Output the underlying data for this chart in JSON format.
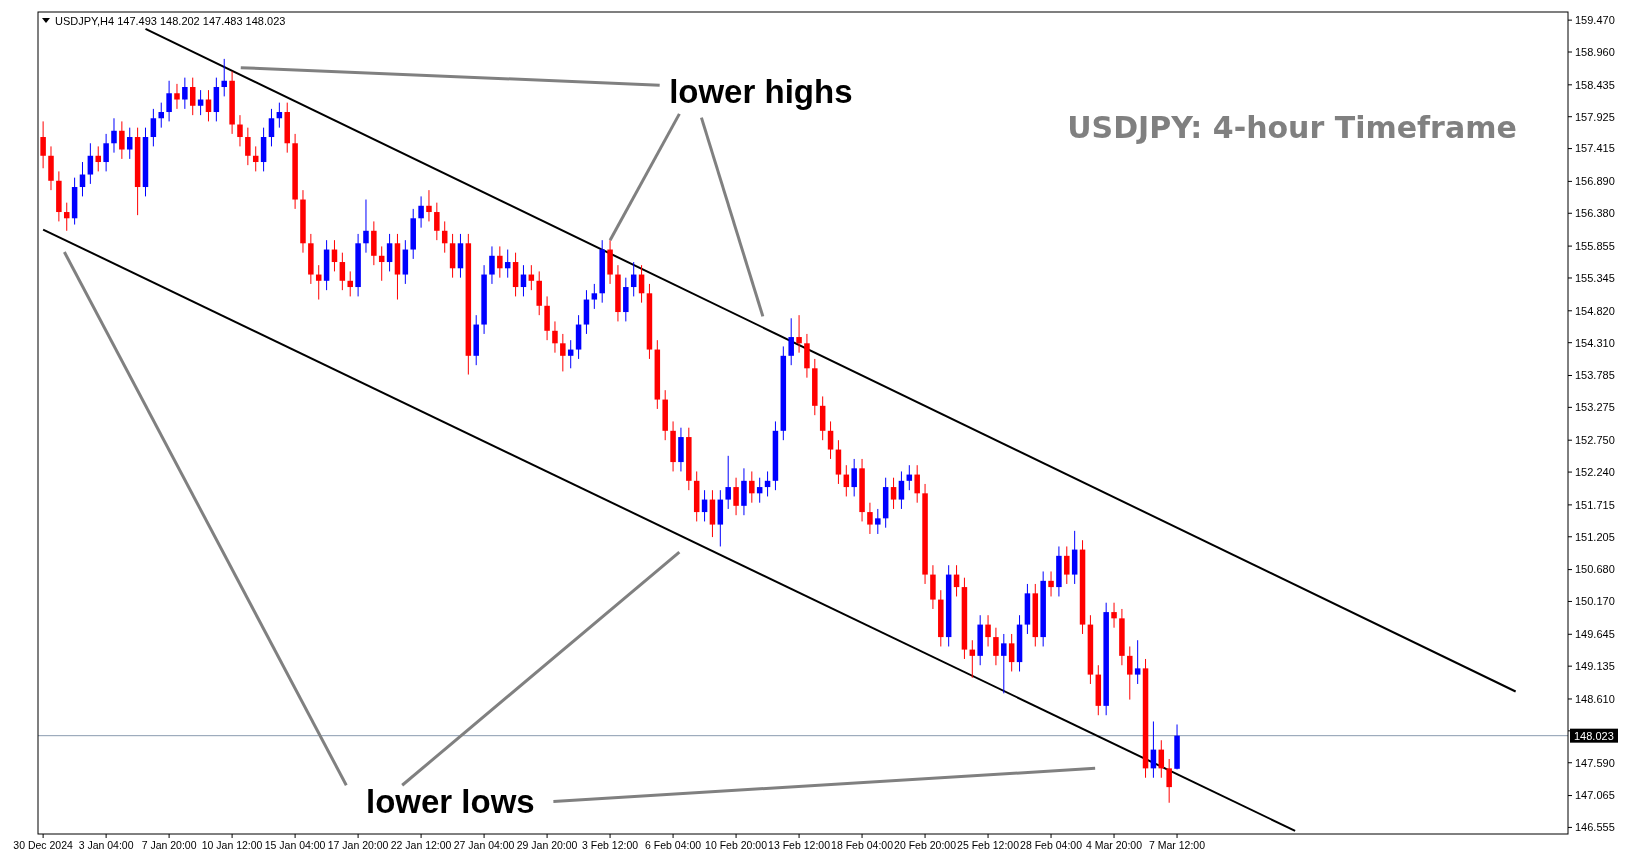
{
  "chart_data": {
    "type": "candlestick",
    "title": "USDJPY: 4-hour Timeframe",
    "annotations": [
      "USDJPY,H4  147.493 148.202 147.483 148.023",
      {
        "text": "lower highs",
        "x": "3 Feb 12:00",
        "y": 155.95
      },
      "lower lows"
    ],
    "categories": [
      "30 Dec 2024",
      null,
      null,
      null,
      null,
      null,
      null,
      null,
      "3 Jan 04:00",
      null,
      null,
      null,
      null,
      null,
      null,
      null,
      "7 Jan 20:00",
      null,
      null,
      null,
      null,
      null,
      null,
      null,
      "10 Jan 12:00",
      null,
      null,
      null,
      null,
      null,
      null,
      null,
      "15 Jan 04:00",
      null,
      null,
      null,
      null,
      null,
      null,
      null,
      "17 Jan 20:00",
      null,
      null,
      null,
      null,
      null,
      null,
      null,
      "22 Jan 12:00",
      null,
      null,
      null,
      null,
      null,
      null,
      null,
      "27 Jan 04:00",
      null,
      null,
      null,
      null,
      null,
      null,
      null,
      "29 Jan 20:00",
      null,
      null,
      null,
      null,
      null,
      null,
      null,
      "3 Feb 12:00",
      null,
      null,
      null,
      null,
      null,
      null,
      null,
      "6 Feb 04:00",
      null,
      null,
      null,
      null,
      null,
      null,
      null,
      "10 Feb 20:00",
      null,
      null,
      null,
      null,
      null,
      null,
      null,
      "13 Feb 12:00",
      null,
      null,
      null,
      null,
      null,
      null,
      null,
      "18 Feb 04:00",
      null,
      null,
      null,
      null,
      null,
      null,
      null,
      "20 Feb 20:00",
      null,
      null,
      null,
      null,
      null,
      null,
      null,
      "25 Feb 12:00",
      null,
      null,
      null,
      null,
      null,
      null,
      null,
      "28 Feb 04:00",
      null,
      null,
      null,
      null,
      null,
      null,
      null,
      "4 Mar 20:00",
      null,
      null,
      null,
      null,
      null,
      null,
      null,
      "7 Mar 12:00",
      null,
      null,
      null,
      null,
      null,
      null,
      null,
      null,
      null,
      null,
      null,
      null,
      null,
      null,
      null,
      null,
      null,
      null,
      null,
      null,
      null,
      null,
      null,
      null,
      null,
      null,
      null,
      null,
      null,
      null,
      null,
      null,
      null,
      null,
      null,
      null,
      null,
      null,
      null,
      null,
      null,
      null,
      null,
      null,
      null,
      null,
      null,
      null,
      null
    ],
    "ohlc": [
      [
        157.6,
        157.85,
        157.1,
        157.3
      ],
      [
        157.3,
        157.45,
        156.75,
        156.9
      ],
      [
        156.9,
        157.05,
        156.25,
        156.4
      ],
      [
        156.4,
        156.55,
        156.1,
        156.3
      ],
      [
        156.3,
        156.95,
        156.2,
        156.8
      ],
      [
        156.8,
        157.2,
        156.65,
        157.0
      ],
      [
        157.0,
        157.5,
        156.85,
        157.3
      ],
      [
        157.3,
        157.45,
        157.05,
        157.2
      ],
      [
        157.2,
        157.65,
        157.05,
        157.5
      ],
      [
        157.5,
        157.9,
        157.35,
        157.7
      ],
      [
        157.7,
        157.85,
        157.25,
        157.4
      ],
      [
        157.4,
        157.75,
        157.25,
        157.6
      ],
      [
        157.6,
        157.75,
        156.35,
        156.8
      ],
      [
        156.8,
        157.75,
        156.65,
        157.6
      ],
      [
        157.6,
        158.05,
        157.45,
        157.9
      ],
      [
        157.9,
        158.15,
        157.75,
        158.0
      ],
      [
        158.0,
        158.5,
        157.85,
        158.3
      ],
      [
        158.3,
        158.45,
        158.05,
        158.2
      ],
      [
        158.2,
        158.55,
        158.05,
        158.4
      ],
      [
        158.4,
        158.55,
        157.95,
        158.1
      ],
      [
        158.1,
        158.35,
        157.95,
        158.2
      ],
      [
        158.2,
        158.35,
        157.85,
        158.0
      ],
      [
        158.0,
        158.55,
        157.85,
        158.4
      ],
      [
        158.4,
        158.85,
        158.25,
        158.5
      ],
      [
        158.5,
        158.65,
        157.65,
        157.8
      ],
      [
        157.8,
        157.95,
        157.45,
        157.6
      ],
      [
        157.6,
        157.75,
        157.15,
        157.3
      ],
      [
        157.3,
        157.45,
        157.05,
        157.2
      ],
      [
        157.2,
        157.75,
        157.05,
        157.6
      ],
      [
        157.6,
        158.05,
        157.45,
        157.9
      ],
      [
        157.9,
        158.15,
        157.75,
        158.0
      ],
      [
        158.0,
        158.15,
        157.35,
        157.5
      ],
      [
        157.5,
        157.65,
        156.45,
        156.6
      ],
      [
        156.6,
        156.75,
        155.75,
        155.9
      ],
      [
        155.9,
        156.05,
        155.25,
        155.4
      ],
      [
        155.4,
        155.55,
        155.0,
        155.3
      ],
      [
        155.3,
        155.95,
        155.15,
        155.8
      ],
      [
        155.8,
        155.95,
        155.45,
        155.6
      ],
      [
        155.6,
        155.75,
        155.15,
        155.3
      ],
      [
        155.3,
        155.45,
        155.05,
        155.2
      ],
      [
        155.2,
        156.05,
        155.05,
        155.9
      ],
      [
        155.9,
        156.6,
        155.75,
        156.1
      ],
      [
        156.1,
        156.25,
        155.55,
        155.7
      ],
      [
        155.7,
        155.85,
        155.3,
        155.6
      ],
      [
        155.6,
        156.05,
        155.45,
        155.9
      ],
      [
        155.9,
        156.05,
        155.0,
        155.4
      ],
      [
        155.4,
        155.95,
        155.25,
        155.8
      ],
      [
        155.8,
        156.45,
        155.65,
        156.3
      ],
      [
        156.3,
        156.65,
        156.15,
        156.5
      ],
      [
        156.5,
        156.75,
        156.25,
        156.4
      ],
      [
        156.4,
        156.55,
        155.95,
        156.1
      ],
      [
        156.1,
        156.25,
        155.75,
        155.9
      ],
      [
        155.9,
        156.05,
        155.35,
        155.5
      ],
      [
        155.5,
        156.05,
        155.35,
        155.9
      ],
      [
        155.9,
        156.05,
        153.8,
        154.1
      ],
      [
        154.1,
        154.75,
        153.95,
        154.6
      ],
      [
        154.6,
        155.55,
        154.45,
        155.4
      ],
      [
        155.4,
        155.85,
        155.25,
        155.7
      ],
      [
        155.7,
        155.85,
        155.35,
        155.5
      ],
      [
        155.5,
        155.8,
        155.35,
        155.6
      ],
      [
        155.6,
        155.75,
        155.05,
        155.2
      ],
      [
        155.2,
        155.55,
        155.05,
        155.4
      ],
      [
        155.4,
        155.55,
        155.15,
        155.3
      ],
      [
        155.3,
        155.45,
        154.75,
        154.9
      ],
      [
        154.9,
        155.05,
        154.35,
        154.5
      ],
      [
        154.5,
        154.65,
        154.15,
        154.3
      ],
      [
        154.3,
        154.45,
        153.85,
        154.1
      ],
      [
        154.1,
        154.35,
        153.9,
        154.2
      ],
      [
        154.2,
        154.75,
        154.05,
        154.6
      ],
      [
        154.6,
        155.15,
        154.45,
        155.0
      ],
      [
        155.0,
        155.25,
        154.85,
        155.1
      ],
      [
        155.1,
        155.95,
        154.95,
        155.8
      ],
      [
        155.8,
        155.95,
        155.25,
        155.4
      ],
      [
        155.4,
        155.55,
        154.65,
        154.8
      ],
      [
        154.8,
        155.35,
        154.65,
        155.2
      ],
      [
        155.2,
        155.6,
        155.05,
        155.4
      ],
      [
        155.4,
        155.55,
        154.95,
        155.1
      ],
      [
        155.1,
        155.25,
        154.05,
        154.2
      ],
      [
        154.2,
        154.35,
        153.25,
        153.4
      ],
      [
        153.4,
        153.55,
        152.75,
        152.9
      ],
      [
        152.9,
        153.05,
        152.25,
        152.4
      ],
      [
        152.4,
        152.95,
        152.25,
        152.8
      ],
      [
        152.8,
        152.95,
        151.95,
        152.1
      ],
      [
        152.1,
        152.25,
        151.45,
        151.6
      ],
      [
        151.6,
        151.95,
        151.45,
        151.8
      ],
      [
        151.8,
        151.95,
        151.2,
        151.4
      ],
      [
        151.4,
        151.95,
        151.05,
        151.8
      ],
      [
        151.8,
        152.5,
        151.65,
        152.0
      ],
      [
        152.0,
        152.15,
        151.55,
        151.7
      ],
      [
        151.7,
        152.3,
        151.55,
        152.1
      ],
      [
        152.1,
        152.25,
        151.75,
        151.9
      ],
      [
        151.9,
        152.15,
        151.75,
        152.0
      ],
      [
        152.0,
        152.25,
        151.85,
        152.1
      ],
      [
        152.1,
        153.05,
        151.95,
        152.9
      ],
      [
        152.9,
        154.25,
        152.75,
        154.1
      ],
      [
        154.1,
        154.7,
        153.95,
        154.4
      ],
      [
        154.4,
        154.75,
        154.15,
        154.3
      ],
      [
        154.3,
        154.45,
        153.75,
        153.9
      ],
      [
        153.9,
        154.05,
        153.15,
        153.3
      ],
      [
        153.3,
        153.45,
        152.75,
        152.9
      ],
      [
        152.9,
        153.05,
        152.45,
        152.6
      ],
      [
        152.6,
        152.75,
        152.05,
        152.2
      ],
      [
        152.2,
        152.35,
        151.85,
        152.0
      ],
      [
        152.0,
        152.45,
        151.85,
        152.3
      ],
      [
        152.3,
        152.45,
        151.45,
        151.6
      ],
      [
        151.6,
        151.75,
        151.25,
        151.4
      ],
      [
        151.4,
        151.65,
        151.25,
        151.5
      ],
      [
        151.5,
        152.15,
        151.35,
        152.0
      ],
      [
        152.0,
        152.15,
        151.65,
        151.8
      ],
      [
        151.8,
        152.25,
        151.65,
        152.1
      ],
      [
        152.1,
        152.35,
        151.95,
        152.2
      ],
      [
        152.2,
        152.35,
        151.75,
        151.9
      ],
      [
        151.9,
        152.05,
        150.45,
        150.6
      ],
      [
        150.6,
        150.75,
        150.05,
        150.2
      ],
      [
        150.2,
        150.35,
        149.45,
        149.6
      ],
      [
        149.6,
        150.75,
        149.45,
        150.6
      ],
      [
        150.6,
        150.75,
        150.25,
        150.4
      ],
      [
        150.4,
        150.55,
        149.25,
        149.4
      ],
      [
        149.4,
        149.55,
        148.95,
        149.3
      ],
      [
        149.3,
        149.95,
        149.15,
        149.8
      ],
      [
        149.8,
        149.95,
        149.45,
        149.6
      ],
      [
        149.6,
        149.75,
        149.15,
        149.3
      ],
      [
        149.3,
        149.65,
        148.7,
        149.5
      ],
      [
        149.5,
        149.65,
        149.05,
        149.2
      ],
      [
        149.2,
        149.95,
        149.05,
        149.8
      ],
      [
        149.8,
        150.45,
        149.65,
        150.3
      ],
      [
        150.3,
        150.45,
        149.45,
        149.6
      ],
      [
        149.6,
        150.65,
        149.45,
        150.5
      ],
      [
        150.5,
        150.65,
        150.25,
        150.4
      ],
      [
        150.4,
        151.05,
        150.25,
        150.9
      ],
      [
        150.9,
        151.05,
        150.45,
        150.6
      ],
      [
        150.6,
        151.3,
        150.45,
        151.0
      ],
      [
        151.0,
        151.15,
        149.65,
        149.8
      ],
      [
        149.8,
        149.95,
        148.85,
        149.0
      ],
      [
        149.0,
        149.15,
        148.35,
        148.5
      ],
      [
        148.5,
        150.15,
        148.35,
        150.0
      ],
      [
        150.0,
        150.15,
        149.75,
        149.9
      ],
      [
        149.9,
        150.05,
        149.15,
        149.3
      ],
      [
        149.3,
        149.45,
        148.6,
        149.0
      ],
      [
        149.0,
        149.55,
        148.85,
        149.1
      ],
      [
        149.1,
        149.25,
        147.35,
        147.5
      ],
      [
        147.5,
        148.25,
        147.35,
        147.8
      ],
      [
        147.8,
        147.95,
        147.35,
        147.5
      ],
      [
        147.5,
        147.65,
        146.95,
        147.2
      ],
      [
        147.493,
        148.202,
        147.483,
        148.023
      ],
      null,
      null,
      null,
      null,
      null,
      null,
      null,
      null,
      null,
      null,
      null,
      null,
      null,
      null,
      null,
      null,
      null,
      null,
      null,
      null,
      null,
      null,
      null,
      null,
      null,
      null,
      null,
      null,
      null,
      null,
      null,
      null,
      null,
      null,
      null,
      null,
      null,
      null,
      null,
      null,
      null,
      null,
      null,
      null,
      null,
      null,
      null,
      null,
      null
    ],
    "colors": [
      "#ff0000",
      "#ff0000",
      "#ff0000",
      "#ff0000",
      "#0000ff",
      "#0000ff",
      "#0000ff",
      "#ff0000",
      "#0000ff",
      "#0000ff",
      "#ff0000",
      "#0000ff",
      "#ff0000",
      "#0000ff",
      "#0000ff",
      "#0000ff",
      "#0000ff",
      "#ff0000",
      "#0000ff",
      "#ff0000",
      "#0000ff",
      "#ff0000",
      "#0000ff",
      "#0000ff",
      "#ff0000",
      "#ff0000",
      "#ff0000",
      "#ff0000",
      "#0000ff",
      "#0000ff",
      "#0000ff",
      "#ff0000",
      "#ff0000",
      "#ff0000",
      "#ff0000",
      "#ff0000",
      "#0000ff",
      "#ff0000",
      "#ff0000",
      "#ff0000",
      "#0000ff",
      "#0000ff",
      "#ff0000",
      "#ff0000",
      "#0000ff",
      "#ff0000",
      "#0000ff",
      "#0000ff",
      "#0000ff",
      "#ff0000",
      "#ff0000",
      "#ff0000",
      "#ff0000",
      "#0000ff",
      "#ff0000",
      "#0000ff",
      "#0000ff",
      "#0000ff",
      "#ff0000",
      "#0000ff",
      "#ff0000",
      "#0000ff",
      "#ff0000",
      "#ff0000",
      "#ff0000",
      "#ff0000",
      "#ff0000",
      "#0000ff",
      "#0000ff",
      "#0000ff",
      "#0000ff",
      "#0000ff",
      "#ff0000",
      "#ff0000",
      "#0000ff",
      "#0000ff",
      "#ff0000",
      "#ff0000",
      "#ff0000",
      "#ff0000",
      "#ff0000",
      "#0000ff",
      "#ff0000",
      "#ff0000",
      "#0000ff",
      "#ff0000",
      "#0000ff",
      "#0000ff",
      "#ff0000",
      "#0000ff",
      "#ff0000",
      "#0000ff",
      "#0000ff",
      "#0000ff",
      "#0000ff",
      "#0000ff",
      "#ff0000",
      "#ff0000",
      "#ff0000",
      "#ff0000",
      "#ff0000",
      "#ff0000",
      "#ff0000",
      "#0000ff",
      "#ff0000",
      "#ff0000",
      "#0000ff",
      "#0000ff",
      "#ff0000",
      "#0000ff",
      "#0000ff",
      "#ff0000",
      "#ff0000",
      "#ff0000",
      "#ff0000",
      "#0000ff",
      "#ff0000",
      "#ff0000",
      "#ff0000",
      "#0000ff",
      "#ff0000",
      "#ff0000",
      "#0000ff",
      "#ff0000",
      "#0000ff",
      "#0000ff",
      "#ff0000",
      "#0000ff",
      "#ff0000",
      "#0000ff",
      "#ff0000",
      "#0000ff",
      "#ff0000",
      "#ff0000",
      "#ff0000",
      "#0000ff",
      "#ff0000",
      "#ff0000",
      "#ff0000",
      "#0000ff",
      "#ff0000",
      "#0000ff",
      "#ff0000",
      "#ff0000",
      "#0000ff",
      null,
      null,
      null,
      null,
      null,
      null,
      null,
      null,
      null,
      null,
      null,
      null,
      null,
      null,
      null,
      null,
      null,
      null,
      null,
      null,
      null,
      null,
      null,
      null,
      null,
      null,
      null,
      null,
      null,
      null,
      null,
      null,
      null,
      null,
      null,
      null,
      null,
      null,
      null,
      null,
      null,
      null,
      null,
      null,
      null,
      null,
      null,
      null,
      null
    ],
    "series": [
      {
        "type": "line",
        "color": "#000000",
        "values": [
          null,
          null,
          null,
          null,
          null,
          null,
          null,
          null,
          null,
          null,
          null,
          null,
          null,
          159.33,
          null,
          null,
          null,
          null,
          null,
          null,
          null,
          null,
          null,
          null,
          null,
          null,
          null,
          null,
          null,
          null,
          null,
          null,
          null,
          null,
          null,
          null,
          null,
          null,
          null,
          null,
          null,
          null,
          null,
          null,
          null,
          null,
          null,
          null,
          null,
          null,
          null,
          null,
          null,
          null,
          null,
          null,
          null,
          null,
          null,
          null,
          null,
          null,
          null,
          null,
          null,
          null,
          null,
          null,
          null,
          null,
          null,
          null,
          null,
          null,
          null,
          null,
          null,
          null,
          null,
          null,
          null,
          null,
          null,
          null,
          null,
          null,
          null,
          null,
          null,
          null,
          null,
          null,
          null,
          null,
          null,
          null,
          null,
          null,
          null,
          null,
          null,
          null,
          null,
          null,
          null,
          null,
          null,
          null,
          null,
          null,
          null,
          null,
          null,
          null,
          null,
          null,
          null,
          null,
          null,
          null,
          null,
          null,
          null,
          null,
          null,
          null,
          null,
          null,
          null,
          null,
          null,
          null,
          null,
          null,
          null,
          null,
          null,
          null,
          null,
          null,
          null,
          null,
          null,
          null,
          null,
          null,
          null,
          null,
          null,
          null,
          null,
          null,
          null,
          null,
          null,
          null,
          null,
          null,
          null,
          null,
          null,
          null,
          null,
          null,
          null,
          null,
          null,
          null,
          null,
          null,
          null,
          null,
          null,
          null,
          null,
          null,
          null,
          null,
          null,
          null,
          null,
          null,
          null,
          null,
          null,
          null,
          null,
          148.73,
          null,
          null,
          null,
          null,
          null,
          null
        ]
      },
      {
        "type": "line",
        "color": "#000000",
        "values": [
          156.12,
          null,
          null,
          null,
          null,
          null,
          null,
          null,
          null,
          null,
          null,
          null,
          null,
          null,
          null,
          null,
          null,
          null,
          null,
          null,
          null,
          null,
          null,
          null,
          null,
          null,
          null,
          null,
          null,
          null,
          null,
          null,
          null,
          null,
          null,
          null,
          null,
          null,
          null,
          null,
          null,
          null,
          null,
          null,
          null,
          null,
          null,
          null,
          null,
          null,
          null,
          null,
          null,
          null,
          null,
          null,
          null,
          null,
          null,
          null,
          null,
          null,
          null,
          null,
          null,
          null,
          null,
          null,
          null,
          null,
          null,
          null,
          null,
          null,
          null,
          null,
          null,
          null,
          null,
          null,
          null,
          null,
          null,
          null,
          null,
          null,
          null,
          null,
          null,
          null,
          null,
          null,
          null,
          null,
          null,
          null,
          null,
          null,
          null,
          null,
          null,
          null,
          null,
          null,
          null,
          null,
          null,
          null,
          null,
          null,
          null,
          null,
          null,
          null,
          null,
          null,
          null,
          null,
          null,
          null,
          null,
          null,
          null,
          null,
          null,
          null,
          null,
          null,
          null,
          null,
          null,
          null,
          null,
          null,
          null,
          null,
          null,
          null,
          null,
          null,
          null,
          null,
          null,
          null,
          null,
          null,
          null,
          null,
          null,
          null,
          null,
          null,
          null,
          null,
          null,
          null,
          null,
          null,
          null,
          146.5,
          null,
          null,
          null,
          null,
          null,
          null,
          null,
          null,
          null,
          null,
          null,
          null,
          null,
          null,
          null,
          null,
          null,
          null,
          null,
          null,
          null,
          null,
          null,
          null,
          null,
          null,
          null,
          null,
          null,
          null,
          null,
          null,
          null,
          null
        ]
      }
    ],
    "ylim": [
      146.45,
      159.6
    ],
    "yticks": [
      {
        "value": 159.47,
        "label": "159.470"
      },
      {
        "value": 158.96,
        "label": "158.960"
      },
      {
        "value": 158.435,
        "label": "158.435"
      },
      {
        "value": 157.925,
        "label": "157.925"
      },
      {
        "value": 157.415,
        "label": "157.415"
      },
      {
        "value": 156.89,
        "label": "156.890"
      },
      {
        "value": 156.38,
        "label": "156.380"
      },
      {
        "value": 155.855,
        "label": "155.855"
      },
      {
        "value": 155.345,
        "label": "155.345"
      },
      {
        "value": 154.82,
        "label": "154.820"
      },
      {
        "value": 154.31,
        "label": "154.310"
      },
      {
        "value": 153.785,
        "label": "153.785"
      },
      {
        "value": 153.275,
        "label": "153.275"
      },
      {
        "value": 152.75,
        "label": "152.750"
      },
      {
        "value": 152.24,
        "label": "152.240"
      },
      {
        "value": 151.715,
        "label": "151.715"
      },
      {
        "value": 151.205,
        "label": "151.205"
      },
      {
        "value": 150.68,
        "label": "150.680"
      },
      {
        "value": 150.17,
        "label": "150.170"
      },
      {
        "value": 149.645,
        "label": "149.645"
      },
      {
        "value": 149.135,
        "label": "149.135"
      },
      {
        "value": 148.61,
        "label": "148.610"
      },
      {
        "value": 148.1,
        "label": null
      },
      {
        "value": 147.59,
        "label": "147.590"
      },
      {
        "value": 147.065,
        "label": "147.065"
      },
      {
        "value": 146.555,
        "label": "146.555"
      }
    ],
    "ref_lines": [
      {
        "axis": "y",
        "value": 148.023,
        "label": "148.023",
        "color": "#8a9bb0"
      }
    ],
    "grid": false
  }
}
